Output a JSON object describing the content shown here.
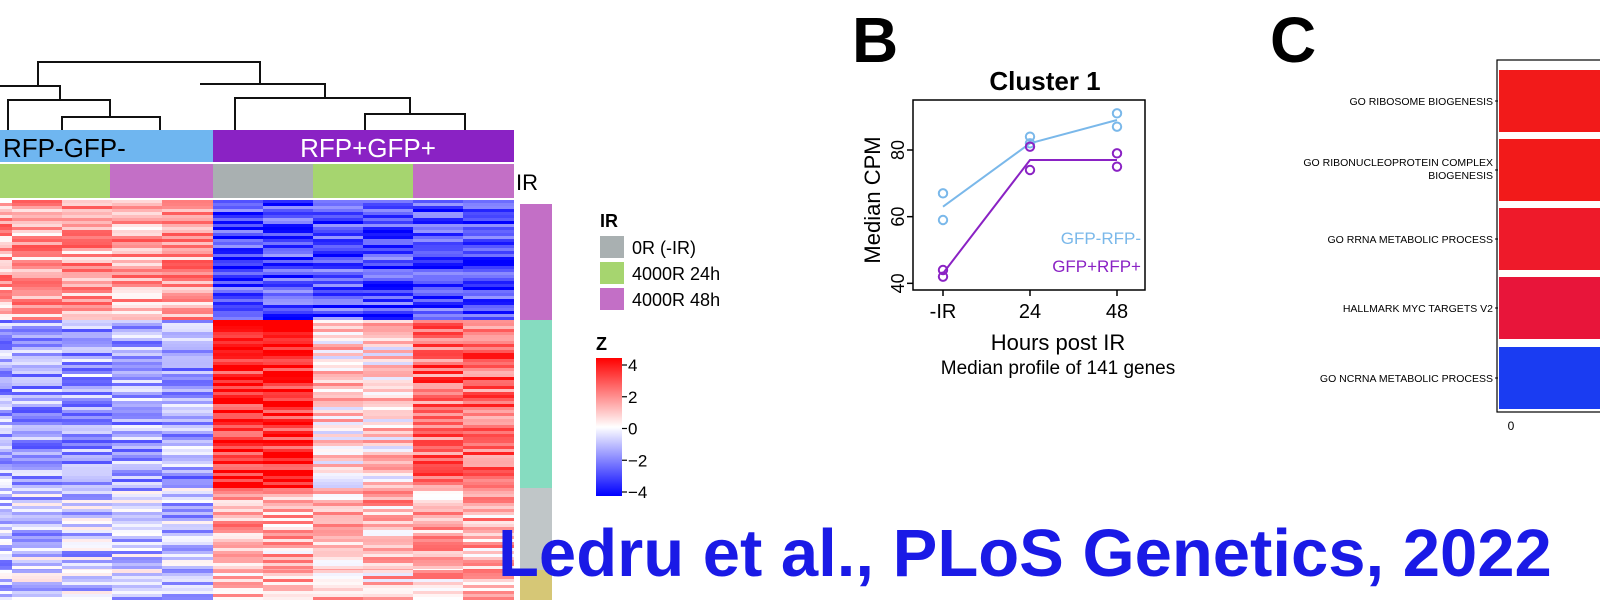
{
  "panels": {
    "b": "B",
    "c": "C"
  },
  "heatmap": {
    "groups": [
      {
        "label": "RFP-GFP-",
        "color": "#6fb6f0"
      },
      {
        "label": "RFP+GFP+",
        "color": "#8a22c4"
      }
    ],
    "ir_track_label": "IR",
    "ir_legend": {
      "title": "IR",
      "items": [
        {
          "label": "0R (-IR)",
          "color": "#a9b0b1"
        },
        {
          "label": "4000R 24h",
          "color": "#a6d56f"
        },
        {
          "label": "4000R 48h",
          "color": "#c36fc6"
        }
      ]
    },
    "z_legend": {
      "title": "Z",
      "ticks": [
        "4",
        "2",
        "0",
        "−2",
        "−4"
      ],
      "values": [
        4,
        2,
        0,
        -2,
        -4
      ],
      "colors": {
        "high": "#ff0000",
        "mid": "#ffffff",
        "low": "#0000ff"
      }
    },
    "cluster_bar_colors": [
      "#c36fc6",
      "#86dcc0",
      "#c0c6c8",
      "#d6c776"
    ]
  },
  "chart_data": [
    {
      "type": "line",
      "title": "Cluster 1",
      "xlabel": "Hours post IR",
      "ylabel": "Median CPM",
      "subtitle": "Median profile of 141 genes",
      "categories": [
        "-IR",
        "24",
        "48"
      ],
      "ylim": [
        38,
        95
      ],
      "yticks": [
        40,
        60,
        80
      ],
      "series": [
        {
          "name": "GFP-RFP-",
          "color": "#7ab8ea",
          "values": [
            63,
            82,
            89
          ],
          "points": [
            [
              0,
              67
            ],
            [
              0,
              59
            ],
            [
              1,
              84
            ],
            [
              1,
              82
            ],
            [
              2,
              91
            ],
            [
              2,
              87
            ]
          ]
        },
        {
          "name": "GFP+RFP+",
          "color": "#8a22c4",
          "values": [
            43,
            77,
            77
          ],
          "points": [
            [
              0,
              44
            ],
            [
              0,
              42
            ],
            [
              1,
              81
            ],
            [
              1,
              74
            ],
            [
              2,
              79
            ],
            [
              2,
              75
            ]
          ]
        }
      ]
    },
    {
      "type": "bar",
      "categories": [
        "GO RIBOSOME BIOGENESIS",
        "GO RIBONUCLEOPROTEIN COMPLEX BIOGENESIS",
        "GO RRNA METABOLIC PROCESS",
        "HALLMARK MYC TARGETS V2",
        "GO NCRNA METABOLIC PROCESS"
      ],
      "colors": [
        "#f21a1a",
        "#f21a1a",
        "#ee1a2a",
        "#e8153a",
        "#1a3cf2"
      ],
      "x_tick_labels": [
        "0"
      ]
    }
  ],
  "citation": "Ledru et al., PLoS Genetics, 2022"
}
